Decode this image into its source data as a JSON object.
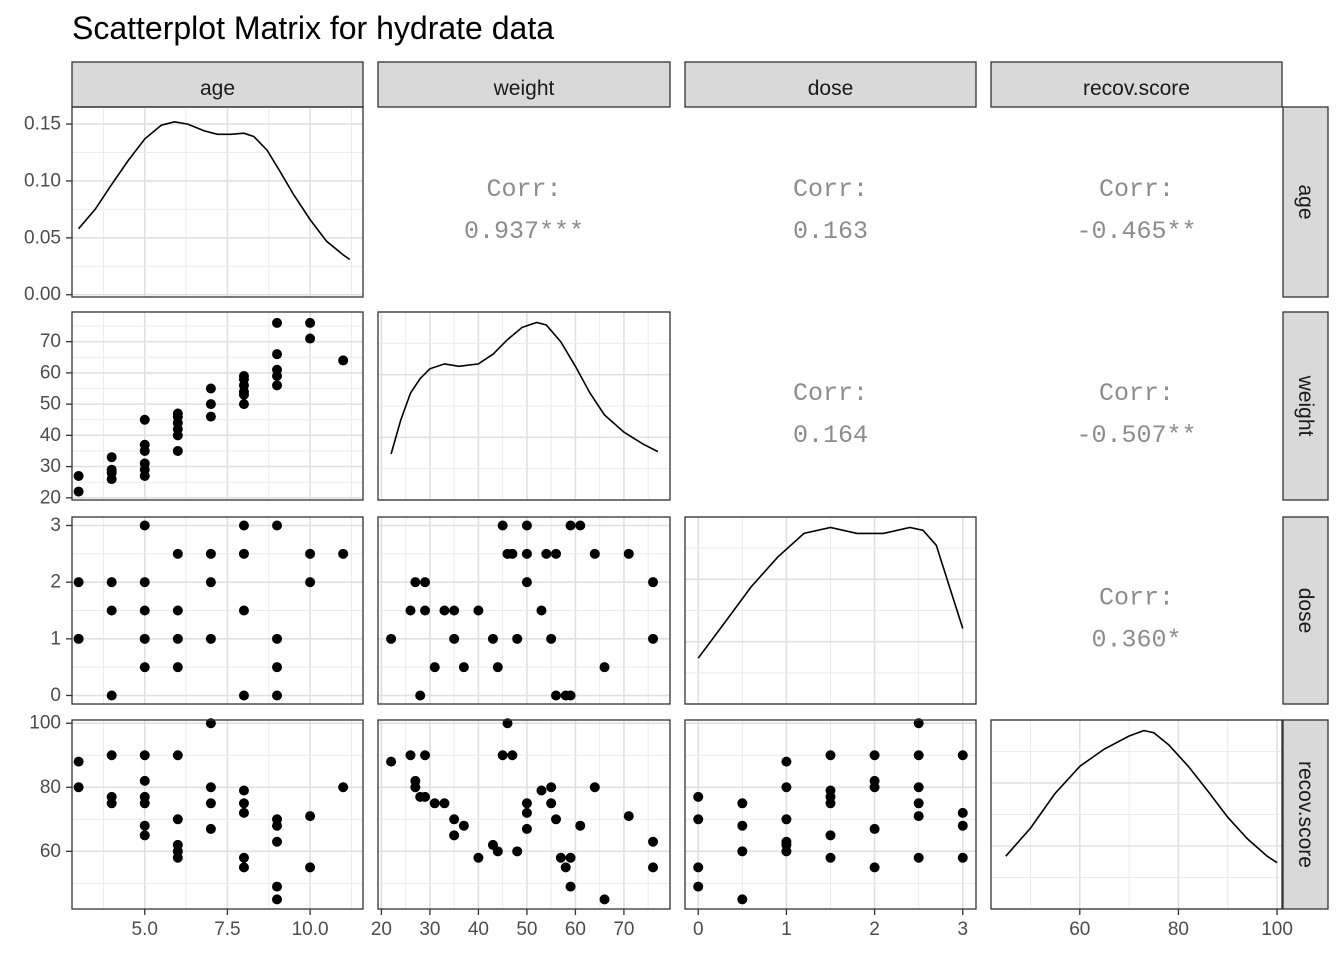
{
  "title": "Scatterplot Matrix for hydrate data",
  "chart_data": {
    "type": "scatter",
    "title": "Scatterplot Matrix for hydrate data",
    "variables": [
      "age",
      "weight",
      "dose",
      "recov.score"
    ],
    "diag_density_axis": {
      "ticks": [
        0.0,
        0.05,
        0.1,
        0.15
      ],
      "tick_labels": [
        "0.00",
        "0.05",
        "0.10",
        "0.15"
      ],
      "ylim": [
        -0.002,
        0.165
      ]
    },
    "axes": {
      "age": {
        "lim": [
          2.8,
          11.6
        ],
        "ticks": [
          5.0,
          7.5,
          10.0
        ],
        "tick_labels": [
          "5.0",
          "7.5",
          "10.0"
        ],
        "minor": [
          3.75,
          6.25,
          8.75,
          11.25
        ]
      },
      "weight": {
        "lim": [
          19.3,
          79.5
        ],
        "ticks": [
          20,
          30,
          40,
          50,
          60,
          70
        ],
        "tick_labels": [
          "20",
          "30",
          "40",
          "50",
          "60",
          "70"
        ],
        "minor": [
          25,
          35,
          45,
          55,
          65,
          75
        ]
      },
      "dose": {
        "lim": [
          -0.15,
          3.15
        ],
        "ticks": [
          0,
          1,
          2,
          3
        ],
        "tick_labels": [
          "0",
          "1",
          "2",
          "3"
        ],
        "minor": [
          0.5,
          1.5,
          2.5
        ]
      },
      "recov.score": {
        "lim": [
          42,
          101
        ],
        "ticks": [
          60,
          80,
          100
        ],
        "tick_labels": [
          "60",
          "80",
          "100"
        ],
        "minor": [
          50,
          70,
          90
        ]
      }
    },
    "density_curves": {
      "age": [
        [
          3.0,
          0.058
        ],
        [
          3.5,
          0.075
        ],
        [
          4.0,
          0.097
        ],
        [
          4.5,
          0.118
        ],
        [
          5.0,
          0.137
        ],
        [
          5.5,
          0.149
        ],
        [
          5.9,
          0.152
        ],
        [
          6.3,
          0.15
        ],
        [
          6.8,
          0.144
        ],
        [
          7.2,
          0.141
        ],
        [
          7.6,
          0.141
        ],
        [
          8.0,
          0.142
        ],
        [
          8.3,
          0.139
        ],
        [
          8.7,
          0.127
        ],
        [
          9.1,
          0.108
        ],
        [
          9.5,
          0.088
        ],
        [
          10.0,
          0.066
        ],
        [
          10.5,
          0.047
        ],
        [
          11.0,
          0.035
        ],
        [
          11.2,
          0.031
        ]
      ],
      "weight": [
        [
          22,
          0.062
        ],
        [
          24,
          0.076
        ],
        [
          26,
          0.087
        ],
        [
          28,
          0.093
        ],
        [
          30,
          0.097
        ],
        [
          33,
          0.099
        ],
        [
          36,
          0.098
        ],
        [
          40,
          0.099
        ],
        [
          43,
          0.103
        ],
        [
          46,
          0.109
        ],
        [
          49,
          0.114
        ],
        [
          52,
          0.116
        ],
        [
          54,
          0.115
        ],
        [
          57,
          0.108
        ],
        [
          60,
          0.098
        ],
        [
          63,
          0.087
        ],
        [
          66,
          0.078
        ],
        [
          70,
          0.071
        ],
        [
          74,
          0.066
        ],
        [
          77,
          0.063
        ]
      ],
      "dose": [
        [
          0,
          0.28
        ],
        [
          0.3,
          0.34
        ],
        [
          0.6,
          0.4
        ],
        [
          0.9,
          0.45
        ],
        [
          1.2,
          0.49
        ],
        [
          1.5,
          0.5
        ],
        [
          1.8,
          0.49
        ],
        [
          2.1,
          0.49
        ],
        [
          2.4,
          0.5
        ],
        [
          2.55,
          0.495
        ],
        [
          2.7,
          0.47
        ],
        [
          2.85,
          0.4
        ],
        [
          3.0,
          0.33
        ]
      ],
      "recov.score": [
        [
          45,
          0.0052
        ],
        [
          50,
          0.0078
        ],
        [
          55,
          0.011
        ],
        [
          60,
          0.0135
        ],
        [
          65,
          0.0151
        ],
        [
          70,
          0.0163
        ],
        [
          73,
          0.0168
        ],
        [
          75,
          0.0166
        ],
        [
          78,
          0.0155
        ],
        [
          82,
          0.0135
        ],
        [
          86,
          0.0112
        ],
        [
          90,
          0.0088
        ],
        [
          94,
          0.0068
        ],
        [
          98,
          0.0052
        ],
        [
          100,
          0.0046
        ]
      ]
    },
    "correlations": [
      {
        "row": "age",
        "col": "weight",
        "label": "Corr:",
        "value": "0.937***"
      },
      {
        "row": "age",
        "col": "dose",
        "label": "Corr:",
        "value": "0.163"
      },
      {
        "row": "age",
        "col": "recov.score",
        "label": "Corr:",
        "value": "-0.465**"
      },
      {
        "row": "weight",
        "col": "dose",
        "label": "Corr:",
        "value": "0.164"
      },
      {
        "row": "weight",
        "col": "recov.score",
        "label": "Corr:",
        "value": "-0.507**"
      },
      {
        "row": "dose",
        "col": "recov.score",
        "label": "Corr:",
        "value": "0.360*"
      }
    ],
    "scatter_data": {
      "weight_vs_age": [
        [
          3,
          27
        ],
        [
          3,
          22
        ],
        [
          4,
          33
        ],
        [
          4,
          29
        ],
        [
          4,
          28
        ],
        [
          4,
          26
        ],
        [
          5,
          45
        ],
        [
          5,
          37
        ],
        [
          5,
          35
        ],
        [
          5,
          31
        ],
        [
          5,
          29
        ],
        [
          5,
          27
        ],
        [
          6,
          47
        ],
        [
          6,
          46
        ],
        [
          6,
          44
        ],
        [
          6,
          42
        ],
        [
          6,
          40
        ],
        [
          6,
          35
        ],
        [
          7,
          55
        ],
        [
          7,
          50
        ],
        [
          7,
          46
        ],
        [
          8,
          59
        ],
        [
          8,
          58
        ],
        [
          8,
          56
        ],
        [
          8,
          54
        ],
        [
          8,
          53
        ],
        [
          8,
          50
        ],
        [
          9,
          76
        ],
        [
          9,
          66
        ],
        [
          9,
          61
        ],
        [
          9,
          59
        ],
        [
          9,
          56
        ],
        [
          10,
          76
        ],
        [
          10,
          71
        ],
        [
          11,
          64
        ]
      ],
      "dose_vs_age": [
        [
          3,
          2
        ],
        [
          3,
          1
        ],
        [
          4,
          2
        ],
        [
          4,
          1.5
        ],
        [
          4,
          0
        ],
        [
          5,
          3
        ],
        [
          5,
          2
        ],
        [
          5,
          1.5
        ],
        [
          5,
          1
        ],
        [
          5,
          0.5
        ],
        [
          6,
          2.5
        ],
        [
          6,
          1.5
        ],
        [
          6,
          1
        ],
        [
          6,
          0.5
        ],
        [
          7,
          2.5
        ],
        [
          7,
          2
        ],
        [
          7,
          1
        ],
        [
          8,
          3
        ],
        [
          8,
          2.5
        ],
        [
          8,
          1.5
        ],
        [
          8,
          0
        ],
        [
          9,
          3
        ],
        [
          9,
          1
        ],
        [
          9,
          0.5
        ],
        [
          9,
          0
        ],
        [
          10,
          2.5
        ],
        [
          10,
          2
        ],
        [
          11,
          2.5
        ]
      ],
      "recov_vs_age": [
        [
          3,
          88
        ],
        [
          3,
          80
        ],
        [
          4,
          90
        ],
        [
          4,
          77
        ],
        [
          4,
          75
        ],
        [
          5,
          90
        ],
        [
          5,
          82
        ],
        [
          5,
          77
        ],
        [
          5,
          75
        ],
        [
          5,
          68
        ],
        [
          5,
          65
        ],
        [
          6,
          90
        ],
        [
          6,
          70
        ],
        [
          6,
          62
        ],
        [
          6,
          60
        ],
        [
          6,
          58
        ],
        [
          7,
          100
        ],
        [
          7,
          80
        ],
        [
          7,
          75
        ],
        [
          7,
          67
        ],
        [
          8,
          79
        ],
        [
          8,
          75
        ],
        [
          8,
          72
        ],
        [
          8,
          58
        ],
        [
          8,
          55
        ],
        [
          9,
          70
        ],
        [
          9,
          68
        ],
        [
          9,
          63
        ],
        [
          9,
          49
        ],
        [
          9,
          45
        ],
        [
          10,
          71
        ],
        [
          10,
          55
        ],
        [
          11,
          80
        ]
      ],
      "dose_vs_weight": [
        [
          22,
          1
        ],
        [
          26,
          1.5
        ],
        [
          27,
          2
        ],
        [
          28,
          0
        ],
        [
          29,
          2
        ],
        [
          29,
          1.5
        ],
        [
          31,
          0.5
        ],
        [
          33,
          1.5
        ],
        [
          35,
          1.5
        ],
        [
          35,
          1
        ],
        [
          37,
          0.5
        ],
        [
          40,
          1.5
        ],
        [
          43,
          1
        ],
        [
          44,
          0.5
        ],
        [
          45,
          3
        ],
        [
          46,
          2.5
        ],
        [
          47,
          2.5
        ],
        [
          48,
          1
        ],
        [
          50,
          3
        ],
        [
          50,
          2.5
        ],
        [
          50,
          2
        ],
        [
          53,
          1.5
        ],
        [
          54,
          2.5
        ],
        [
          55,
          1
        ],
        [
          56,
          2.5
        ],
        [
          56,
          0
        ],
        [
          58,
          0
        ],
        [
          59,
          3
        ],
        [
          59,
          0
        ],
        [
          61,
          3
        ],
        [
          64,
          2.5
        ],
        [
          66,
          0.5
        ],
        [
          71,
          2.5
        ],
        [
          76,
          2
        ],
        [
          76,
          1
        ]
      ],
      "recov_vs_weight": [
        [
          22,
          88
        ],
        [
          26,
          90
        ],
        [
          27,
          82
        ],
        [
          27,
          80
        ],
        [
          28,
          77
        ],
        [
          29,
          90
        ],
        [
          29,
          77
        ],
        [
          31,
          75
        ],
        [
          33,
          75
        ],
        [
          35,
          70
        ],
        [
          35,
          65
        ],
        [
          37,
          68
        ],
        [
          40,
          58
        ],
        [
          43,
          62
        ],
        [
          44,
          60
        ],
        [
          45,
          90
        ],
        [
          46,
          100
        ],
        [
          47,
          90
        ],
        [
          48,
          60
        ],
        [
          50,
          75
        ],
        [
          50,
          72
        ],
        [
          50,
          67
        ],
        [
          53,
          79
        ],
        [
          55,
          80
        ],
        [
          55,
          75
        ],
        [
          56,
          70
        ],
        [
          57,
          58
        ],
        [
          58,
          55
        ],
        [
          59,
          58
        ],
        [
          59,
          49
        ],
        [
          61,
          68
        ],
        [
          64,
          80
        ],
        [
          66,
          45
        ],
        [
          71,
          71
        ],
        [
          76,
          63
        ],
        [
          76,
          55
        ]
      ],
      "recov_vs_dose": [
        [
          0,
          77
        ],
        [
          0,
          70
        ],
        [
          0,
          55
        ],
        [
          0,
          49
        ],
        [
          0.5,
          75
        ],
        [
          0.5,
          68
        ],
        [
          0.5,
          60
        ],
        [
          0.5,
          45
        ],
        [
          1,
          88
        ],
        [
          1,
          80
        ],
        [
          1,
          70
        ],
        [
          1,
          63
        ],
        [
          1,
          62
        ],
        [
          1,
          60
        ],
        [
          1.5,
          90
        ],
        [
          1.5,
          79
        ],
        [
          1.5,
          77
        ],
        [
          1.5,
          75
        ],
        [
          1.5,
          65
        ],
        [
          1.5,
          58
        ],
        [
          2,
          90
        ],
        [
          2,
          82
        ],
        [
          2,
          80
        ],
        [
          2,
          67
        ],
        [
          2,
          55
        ],
        [
          2.5,
          100
        ],
        [
          2.5,
          90
        ],
        [
          2.5,
          80
        ],
        [
          2.5,
          75
        ],
        [
          2.5,
          71
        ],
        [
          2.5,
          58
        ],
        [
          3,
          90
        ],
        [
          3,
          72
        ],
        [
          3,
          68
        ],
        [
          3,
          58
        ]
      ]
    }
  }
}
